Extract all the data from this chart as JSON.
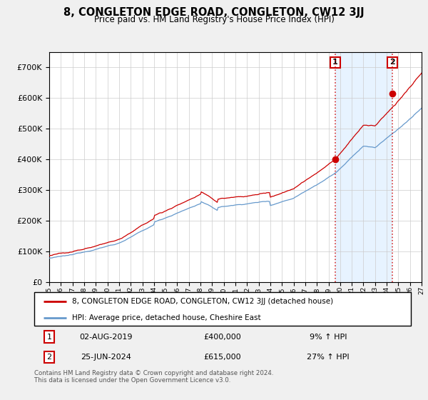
{
  "title": "8, CONGLETON EDGE ROAD, CONGLETON, CW12 3JJ",
  "subtitle": "Price paid vs. HM Land Registry's House Price Index (HPI)",
  "legend_line1": "8, CONGLETON EDGE ROAD, CONGLETON, CW12 3JJ (detached house)",
  "legend_line2": "HPI: Average price, detached house, Cheshire East",
  "annotation1_label": "1",
  "annotation1_date": "02-AUG-2019",
  "annotation1_price": "£400,000",
  "annotation1_hpi": "9% ↑ HPI",
  "annotation2_label": "2",
  "annotation2_date": "25-JUN-2024",
  "annotation2_price": "£615,000",
  "annotation2_hpi": "27% ↑ HPI",
  "footer": "Contains HM Land Registry data © Crown copyright and database right 2024.\nThis data is licensed under the Open Government Licence v3.0.",
  "background_color": "#f0f0f0",
  "plot_background": "#ffffff",
  "hpi_line_color": "#6699cc",
  "price_line_color": "#cc0000",
  "shade_color": "#ddeeff",
  "sale1_year": 2019.58,
  "sale1_value": 400000,
  "sale2_year": 2024.48,
  "sale2_value": 615000,
  "ylim_min": 0,
  "ylim_max": 750000,
  "yticks": [
    0,
    100000,
    200000,
    300000,
    400000,
    500000,
    600000,
    700000
  ],
  "year_start": 1995,
  "year_end": 2027
}
